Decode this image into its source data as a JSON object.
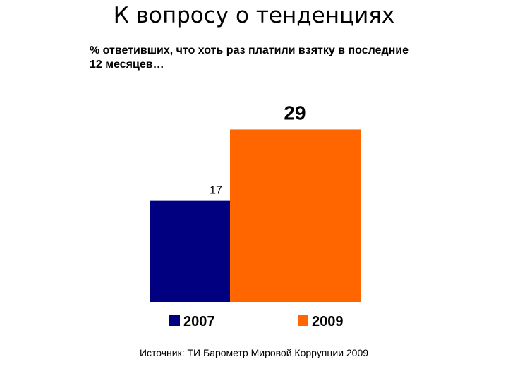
{
  "page": {
    "title": "К вопросу о тенденциях",
    "subtitle": "% ответивших, что хоть раз платили взятку в последние 12 месяцев…",
    "source": "Источник: ТИ Барометр Мировой Коррупции 2009"
  },
  "chart_data": {
    "type": "bar",
    "categories": [
      "2007",
      "2009"
    ],
    "values": [
      17,
      29
    ],
    "data_labels": [
      "17",
      "29"
    ],
    "colors": [
      "#000080",
      "#FF6600"
    ],
    "ylim": [
      0,
      30
    ],
    "grid": false,
    "legend": {
      "position": "bottom",
      "entries": [
        "2007",
        "2009"
      ]
    }
  }
}
